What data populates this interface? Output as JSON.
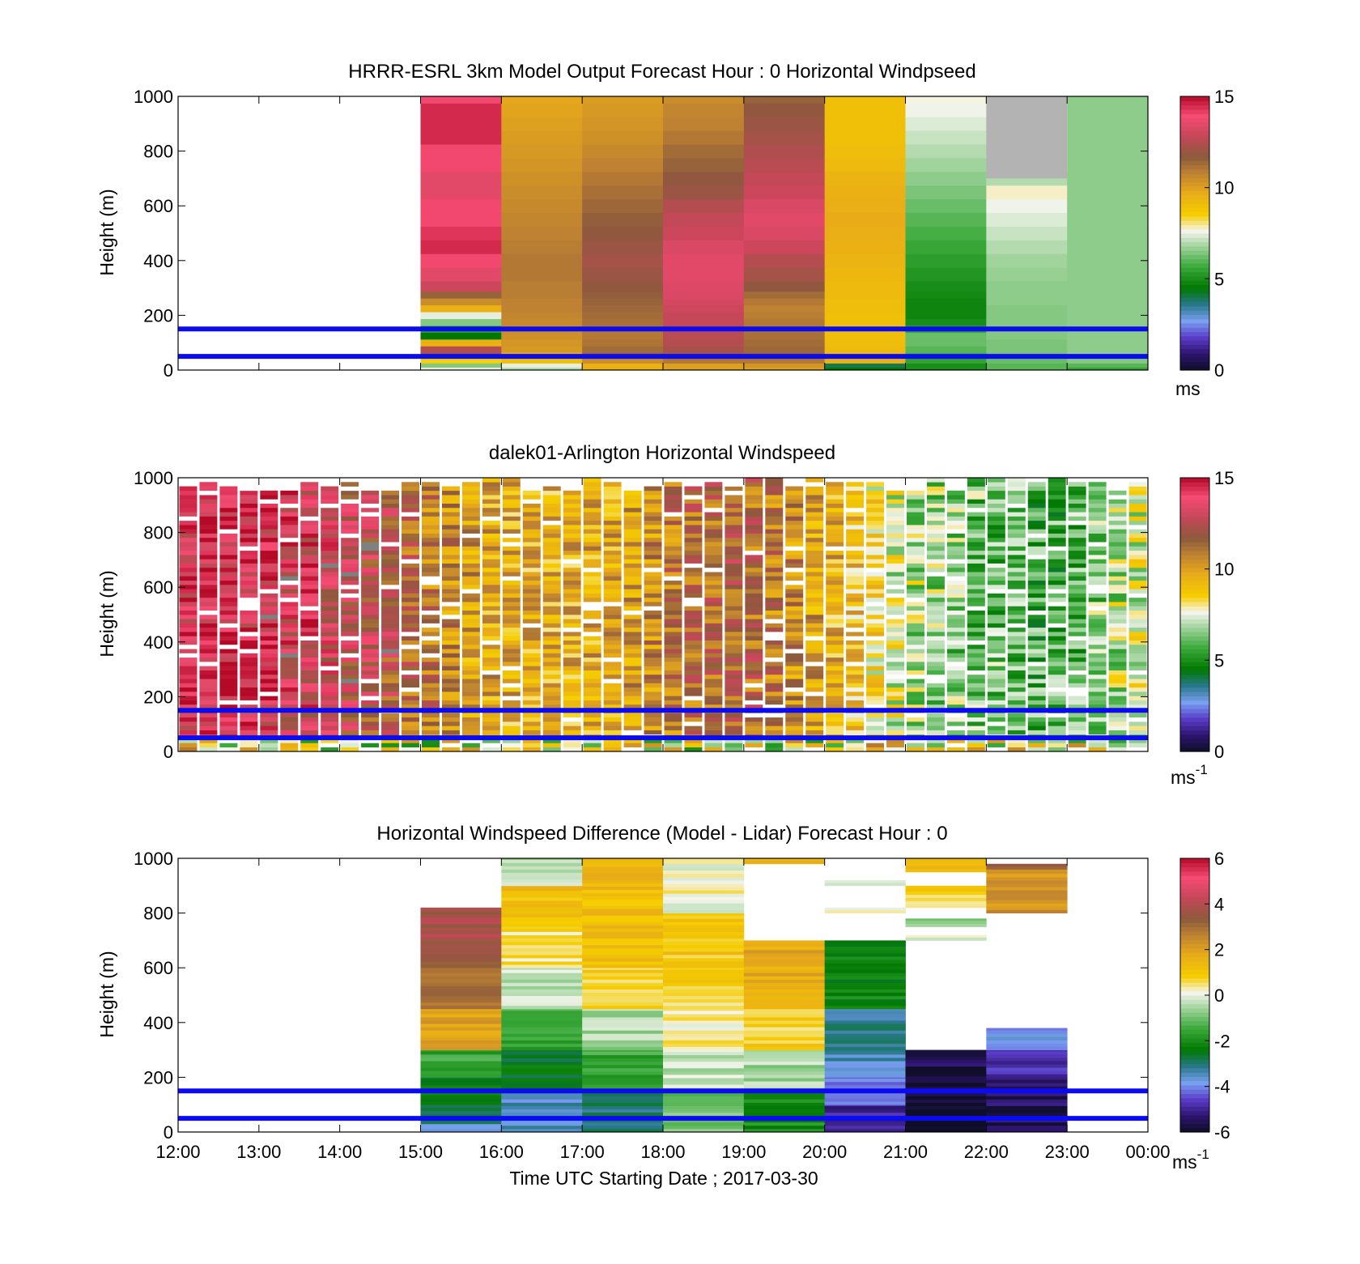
{
  "chart_data": [
    {
      "type": "heatmap",
      "title": "HRRR-ESRL 3km Model Output   Forecast Hour : 0 Horizontal Windpseed",
      "ylabel": "Height (m)",
      "xlabel": "",
      "xlim": [
        12,
        24
      ],
      "ylim": [
        0,
        1000
      ],
      "yticks": [
        0,
        200,
        400,
        600,
        800,
        1000
      ],
      "xticks": [
        12,
        13,
        14,
        15,
        16,
        17,
        18,
        19,
        20,
        21,
        22,
        23,
        24
      ],
      "colorbar": {
        "ticks": [
          "0",
          "5",
          "10",
          "15"
        ],
        "range": [
          0,
          15
        ],
        "unit": "ms",
        "unit_sup": ""
      },
      "reference_lines_m": [
        50,
        150
      ],
      "heights": [
        5,
        15,
        35,
        55,
        75,
        100,
        125,
        150,
        175,
        200,
        225,
        250,
        275,
        300,
        350,
        400,
        450,
        500,
        550,
        600,
        650,
        700,
        750,
        800,
        850,
        900,
        950,
        1000
      ],
      "times": [
        15,
        16,
        17,
        18,
        19,
        20,
        21,
        22,
        23
      ],
      "values": [
        [
          7.5,
          6.5,
          8.5,
          12.0,
          12.5,
          9.5,
          4.5,
          5.5,
          6.5,
          7.5,
          9.5,
          10.5,
          11.5,
          13.0,
          13.5,
          14.0,
          14.5,
          14.3,
          14.0,
          14.0,
          13.5,
          13.5,
          14.0,
          14.0,
          14.5,
          14.5,
          14.5,
          14.0
        ],
        [
          7.0,
          7.5,
          9.0,
          9.8,
          10.2,
          10.3,
          10.4,
          10.5,
          10.6,
          10.7,
          10.8,
          10.8,
          10.9,
          10.9,
          11.0,
          11.0,
          10.9,
          10.8,
          10.7,
          10.6,
          10.5,
          10.4,
          10.3,
          10.2,
          10.1,
          10.0,
          9.9,
          9.8
        ],
        [
          9.5,
          9.5,
          10.5,
          11.5,
          11.3,
          11.1,
          11.0,
          11.0,
          11.2,
          11.3,
          11.4,
          11.5,
          11.6,
          11.8,
          12.0,
          12.2,
          12.0,
          11.8,
          11.6,
          11.4,
          11.2,
          11.0,
          10.8,
          10.6,
          10.4,
          10.3,
          10.2,
          10.1
        ],
        [
          10.0,
          10.0,
          11.0,
          12.0,
          12.3,
          12.5,
          12.6,
          12.7,
          12.8,
          12.9,
          13.0,
          13.2,
          13.3,
          13.4,
          13.5,
          13.5,
          13.3,
          13.0,
          12.8,
          12.5,
          12.0,
          11.8,
          11.5,
          11.3,
          11.0,
          10.8,
          10.7,
          10.5
        ],
        [
          10.0,
          10.3,
          11.0,
          11.5,
          11.4,
          11.3,
          11.2,
          11.1,
          11.0,
          10.9,
          10.8,
          11.0,
          11.3,
          11.8,
          12.2,
          12.5,
          13.0,
          13.3,
          13.5,
          13.3,
          13.0,
          12.8,
          12.6,
          12.4,
          12.2,
          12.0,
          11.8,
          11.5
        ],
        [
          4.5,
          4.0,
          9.5,
          9.3,
          9.2,
          9.1,
          9.0,
          9.0,
          9.0,
          9.0,
          9.1,
          9.1,
          9.2,
          9.2,
          9.3,
          9.4,
          9.5,
          9.6,
          9.7,
          9.6,
          9.5,
          9.4,
          9.2,
          9.1,
          9.0,
          9.0,
          9.0,
          9.0
        ],
        [
          5.0,
          5.0,
          5.5,
          5.8,
          6.0,
          6.2,
          6.2,
          5.5,
          5.0,
          4.8,
          4.8,
          4.8,
          4.9,
          5.0,
          5.2,
          5.4,
          5.6,
          5.8,
          6.0,
          6.2,
          6.4,
          6.6,
          6.8,
          7.0,
          7.2,
          7.4,
          7.6,
          7.7
        ],
        [
          6.0,
          6.0,
          6.2,
          6.3,
          6.4,
          6.4,
          6.5,
          6.5,
          6.5,
          6.5,
          6.5,
          6.6,
          6.6,
          6.6,
          6.7,
          6.8,
          7.0,
          7.2,
          7.4,
          7.6,
          7.8,
          7.0,
          99,
          99,
          99,
          99,
          99,
          99
        ],
        [
          5.5,
          6.0,
          6.5,
          6.6,
          6.6,
          6.6,
          6.6,
          6.6,
          6.6,
          6.6,
          6.6,
          6.6,
          6.6,
          6.6,
          6.6,
          6.6,
          6.6,
          6.6,
          6.6,
          6.6,
          6.6,
          6.6,
          6.6,
          6.6,
          6.6,
          6.6,
          6.6,
          6.6
        ]
      ]
    },
    {
      "type": "heatmap",
      "title": "dalek01-Arlington  Horizontal Windspeed",
      "ylabel": "Height (m)",
      "xlabel": "",
      "xlim": [
        12,
        24
      ],
      "ylim": [
        0,
        1000
      ],
      "yticks": [
        0,
        200,
        400,
        600,
        800,
        1000
      ],
      "xticks": [
        12,
        13,
        14,
        15,
        16,
        17,
        18,
        19,
        20,
        21,
        22,
        23,
        24
      ],
      "colorbar": {
        "ticks": [
          "0",
          "5",
          "10",
          "15"
        ],
        "range": [
          0,
          15
        ],
        "unit": "ms",
        "unit_sup": "-1"
      },
      "reference_lines_m": [
        50,
        150
      ],
      "profile_minutes": 15,
      "profile_hours": [
        12.0,
        12.25,
        12.5,
        12.75,
        13.0,
        13.25,
        13.5,
        13.75,
        14.0,
        14.25,
        14.5,
        14.75,
        15.0,
        15.25,
        15.5,
        15.75,
        16.0,
        16.25,
        16.5,
        16.75,
        17.0,
        17.25,
        17.5,
        17.75,
        18.0,
        18.25,
        18.5,
        18.75,
        19.0,
        19.25,
        19.5,
        19.75,
        20.0,
        20.25,
        20.5,
        20.75,
        21.0,
        21.25,
        21.5,
        21.75,
        22.0,
        22.25,
        22.5,
        22.75,
        23.0,
        23.25,
        23.5,
        23.75
      ],
      "profile_base_speed": [
        14.0,
        14.2,
        14.3,
        14.0,
        13.8,
        13.6,
        13.5,
        13.2,
        12.8,
        12.5,
        12.0,
        11.5,
        11.0,
        10.5,
        10.0,
        9.8,
        9.6,
        9.5,
        9.5,
        9.6,
        9.7,
        9.8,
        10.0,
        10.5,
        11.0,
        11.3,
        11.5,
        11.8,
        11.5,
        11.0,
        10.5,
        10.0,
        9.5,
        9.0,
        8.2,
        7.5,
        7.0,
        6.8,
        6.5,
        6.3,
        6.2,
        6.0,
        5.8,
        5.8,
        6.0,
        6.5,
        7.0,
        7.5
      ]
    },
    {
      "type": "heatmap",
      "title": "Horizontal Windspeed Difference (Model - Lidar) Forecast Hour : 0",
      "ylabel": "Height (m)",
      "xlabel": "Time UTC  Starting Date ; 2017-03-30",
      "xlim": [
        12,
        24
      ],
      "ylim": [
        0,
        1000
      ],
      "yticks": [
        0,
        200,
        400,
        600,
        800,
        1000
      ],
      "xticks": [
        12,
        13,
        14,
        15,
        16,
        17,
        18,
        19,
        20,
        21,
        22,
        23,
        24
      ],
      "colorbar": {
        "ticks": [
          "-6",
          "-4",
          "-2",
          "0",
          "2",
          "4",
          "6"
        ],
        "range": [
          -6,
          6
        ],
        "unit": "ms",
        "unit_sup": "-1"
      },
      "reference_lines_m": [
        50,
        150
      ],
      "columns": [
        {
          "t": 15,
          "top": 820,
          "bands": [
            [
              0,
              30,
              -3.5
            ],
            [
              30,
              100,
              -3.0
            ],
            [
              100,
              200,
              -2.5
            ],
            [
              200,
              300,
              -1.5
            ],
            [
              300,
              450,
              2.0
            ],
            [
              450,
              600,
              3.0
            ],
            [
              600,
              700,
              3.5
            ],
            [
              700,
              820,
              3.8
            ]
          ]
        },
        {
          "t": 16,
          "top": 1000,
          "bands": [
            [
              0,
              150,
              -3.5
            ],
            [
              150,
              300,
              -2.5
            ],
            [
              300,
              450,
              -1.5
            ],
            [
              450,
              600,
              -0.3
            ],
            [
              600,
              750,
              0.5
            ],
            [
              750,
              900,
              1.2
            ],
            [
              900,
              1000,
              -0.5
            ]
          ]
        },
        {
          "t": 17,
          "top": 1000,
          "bands": [
            [
              0,
              150,
              -3.0
            ],
            [
              150,
              300,
              -1.5
            ],
            [
              300,
              450,
              -0.5
            ],
            [
              450,
              600,
              0.8
            ],
            [
              600,
              850,
              1.2
            ],
            [
              850,
              1000,
              1.4
            ]
          ]
        },
        {
          "t": 18,
          "top": 1000,
          "bands": [
            [
              0,
              150,
              -1.0
            ],
            [
              150,
              300,
              -0.3
            ],
            [
              300,
              450,
              0.3
            ],
            [
              450,
              600,
              0.8
            ],
            [
              600,
              800,
              1.0
            ],
            [
              800,
              1000,
              0.2
            ]
          ]
        },
        {
          "t": 19,
          "top": 1000,
          "bands": [
            [
              0,
              150,
              -2.0
            ],
            [
              150,
              300,
              -0.5
            ],
            [
              300,
              450,
              0.8
            ],
            [
              450,
              700,
              1.8
            ],
            [
              980,
              1000,
              1.4
            ]
          ]
        },
        {
          "t": 20,
          "top": 920,
          "bands": [
            [
              0,
              100,
              -5.0
            ],
            [
              100,
              200,
              -4.0
            ],
            [
              200,
              300,
              -3.5
            ],
            [
              300,
              450,
              -3.2
            ],
            [
              450,
              700,
              -2.2
            ],
            [
              800,
              820,
              0.3
            ],
            [
              900,
              920,
              -0.2
            ]
          ]
        },
        {
          "t": 21,
          "top": 1000,
          "bands": [
            [
              0,
              240,
              -6.0
            ],
            [
              240,
              300,
              -5.5
            ],
            [
              700,
              720,
              -0.2
            ],
            [
              750,
              780,
              -0.6
            ],
            [
              820,
              900,
              0.8
            ],
            [
              950,
              1000,
              1.5
            ]
          ]
        },
        {
          "t": 22,
          "top": 980,
          "bands": [
            [
              0,
              200,
              -5.5
            ],
            [
              200,
              300,
              -4.8
            ],
            [
              300,
              380,
              -3.8
            ],
            [
              800,
              960,
              2.3
            ],
            [
              960,
              980,
              3.5
            ]
          ]
        }
      ]
    }
  ]
}
